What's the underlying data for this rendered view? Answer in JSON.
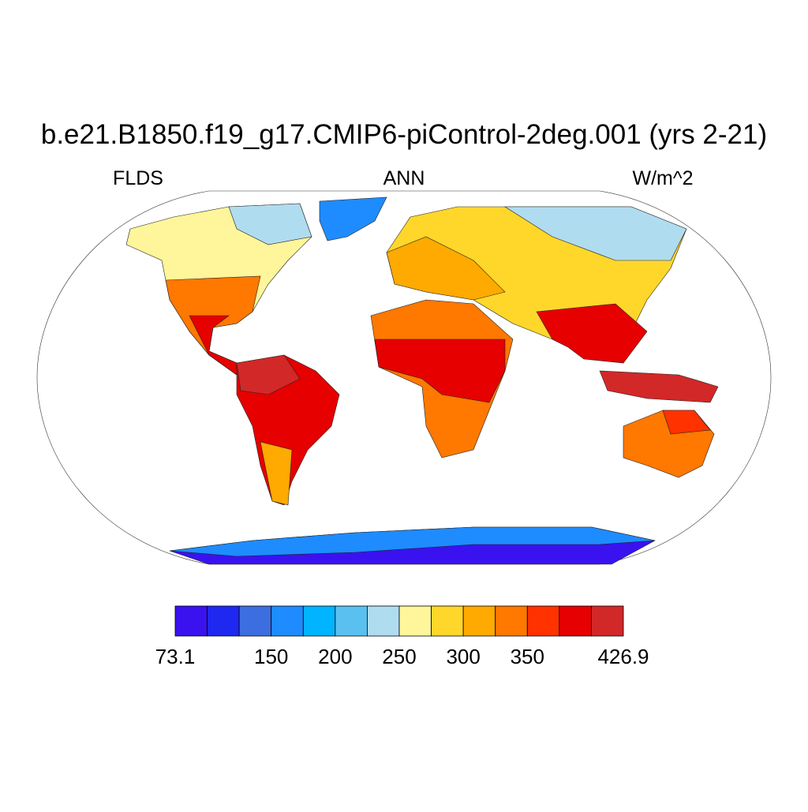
{
  "title": "b.e21.B1850.f19_g17.CMIP6-piControl-2deg.001 (yrs 2-21)",
  "left_label": "FLDS",
  "center_label": "ANN",
  "right_label": "W/m^2",
  "colorbar": {
    "levels": [
      73.1,
      100,
      125,
      150,
      175,
      200,
      225,
      250,
      275,
      300,
      325,
      350,
      375,
      400,
      426.9
    ],
    "colors": [
      "#3a12f0",
      "#1e28f0",
      "#3c6ee0",
      "#1e8cff",
      "#00b4ff",
      "#5ac0f0",
      "#b0dcf0",
      "#fff59a",
      "#ffd72a",
      "#ffaa00",
      "#ff7800",
      "#ff3200",
      "#e60000",
      "#d22828"
    ],
    "ticks": [
      73.1,
      150,
      200,
      250,
      300,
      350,
      426.9
    ]
  }
}
